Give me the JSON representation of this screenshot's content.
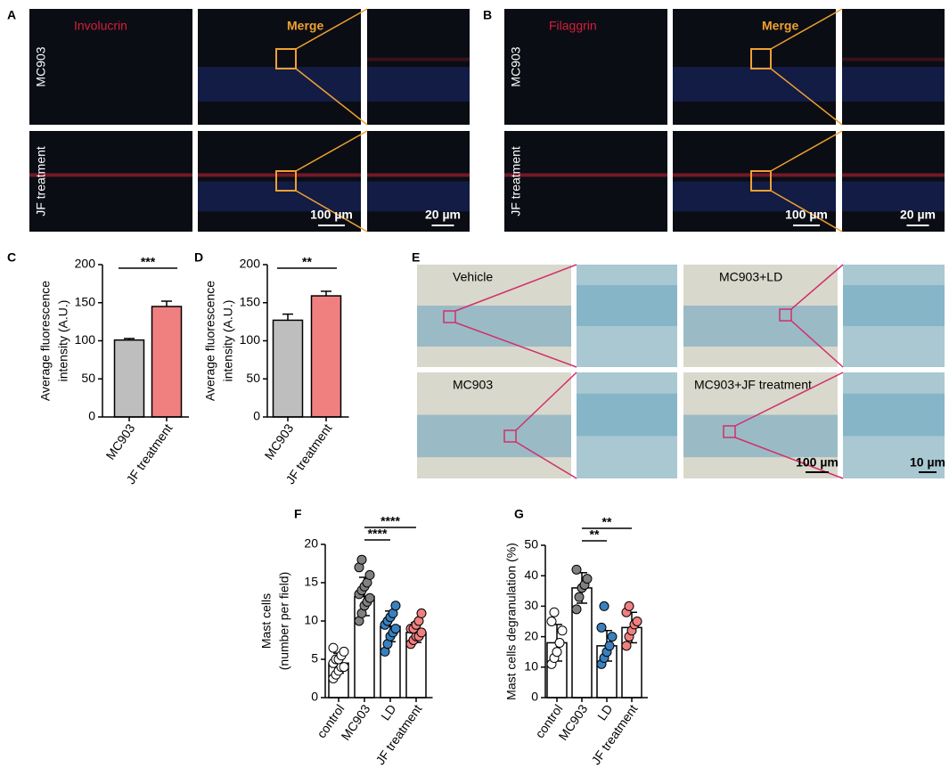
{
  "panels": {
    "labels": [
      "A",
      "B",
      "C",
      "D",
      "E",
      "F",
      "G"
    ]
  },
  "fluorescence": [
    {
      "stain": "Involucrin",
      "merge": "Merge",
      "rows": [
        "MC903",
        "JF treatment"
      ],
      "scale_bars": [
        "100 µm",
        "20 µm"
      ]
    },
    {
      "stain": "Filaggrin",
      "merge": "Merge",
      "rows": [
        "MC903",
        "JF treatment"
      ],
      "scale_bars": [
        "100 µm",
        "20 µm"
      ]
    }
  ],
  "histology": {
    "labels": [
      "Vehicle",
      "MC903+LD",
      "MC903",
      "MC903+JF treatment"
    ],
    "scale_bars": [
      "100 µm",
      "10 µm"
    ]
  },
  "chart_data": [
    {
      "type": "bar",
      "ylabel": [
        "Average fluorescence",
        "intensity (A.U.)"
      ],
      "categories": [
        "MC903",
        "JF treatment"
      ],
      "values": [
        101,
        145
      ],
      "errors": [
        2,
        7
      ],
      "colors": [
        "#bebebe",
        "#f08080"
      ],
      "ylim": [
        0,
        200
      ],
      "yticks": [
        0,
        50,
        100,
        150,
        200
      ],
      "annotations": [
        {
          "text": "***",
          "from": 0,
          "to": 1
        }
      ]
    },
    {
      "type": "bar",
      "ylabel": [
        "Average fluorescence",
        "intensity (A.U.)"
      ],
      "categories": [
        "MC903",
        "JF treatment"
      ],
      "values": [
        127,
        159
      ],
      "errors": [
        8,
        6
      ],
      "colors": [
        "#bebebe",
        "#f08080"
      ],
      "ylim": [
        0,
        200
      ],
      "yticks": [
        0,
        50,
        100,
        150,
        200
      ],
      "annotations": [
        {
          "text": "**",
          "from": 0,
          "to": 1
        }
      ]
    },
    {
      "type": "bar",
      "ylabel": [
        "Mast cells",
        "(number per field)"
      ],
      "categories": [
        "control",
        "MC903",
        "LD",
        "JF treatment"
      ],
      "values": [
        4.5,
        13.2,
        9.3,
        8.5
      ],
      "errors": [
        1.3,
        2.5,
        2,
        1.3
      ],
      "colors": [
        "#ffffff",
        "#ffffff",
        "#ffffff",
        "#ffffff"
      ],
      "dot_colors": [
        "#ffffff",
        "#808080",
        "#3a80c0",
        "#f08080"
      ],
      "points": [
        [
          2.5,
          3,
          3.5,
          4,
          4,
          4.5,
          5,
          5,
          5.5,
          6,
          6.5
        ],
        [
          10,
          11,
          12,
          12.5,
          13,
          13.5,
          14,
          14.5,
          15,
          16,
          17,
          18
        ],
        [
          6,
          7,
          8,
          8.5,
          9,
          9.5,
          10,
          10.5,
          11,
          12
        ],
        [
          7,
          7.5,
          8,
          8,
          8.5,
          9,
          9,
          9.5,
          10,
          11
        ]
      ],
      "ylim": [
        0,
        20
      ],
      "yticks": [
        0,
        5,
        10,
        15,
        20
      ],
      "annotations": [
        {
          "text": "****",
          "from": 1,
          "to": 2
        },
        {
          "text": "****",
          "from": 1,
          "to": 3
        }
      ]
    },
    {
      "type": "bar",
      "ylabel": [
        "Mast cells degranulation (%)"
      ],
      "categories": [
        "control",
        "MC903",
        "LD",
        "JF treatment"
      ],
      "values": [
        18,
        36,
        17,
        23
      ],
      "errors": [
        6,
        5,
        5,
        5
      ],
      "colors": [
        "#ffffff",
        "#ffffff",
        "#ffffff",
        "#ffffff"
      ],
      "dot_colors": [
        "#ffffff",
        "#808080",
        "#3a80c0",
        "#f08080"
      ],
      "points": [
        [
          11,
          13,
          15,
          18,
          22,
          25,
          28
        ],
        [
          29,
          33,
          36,
          37,
          39,
          42
        ],
        [
          11,
          13,
          15,
          17,
          20,
          23,
          30
        ],
        [
          17,
          20,
          22,
          24,
          25,
          28,
          30
        ]
      ],
      "ylim": [
        0,
        50
      ],
      "yticks": [
        0,
        10,
        20,
        30,
        40,
        50
      ],
      "annotations": [
        {
          "text": "**",
          "from": 1,
          "to": 2
        },
        {
          "text": "**",
          "from": 1,
          "to": 3
        }
      ]
    }
  ]
}
